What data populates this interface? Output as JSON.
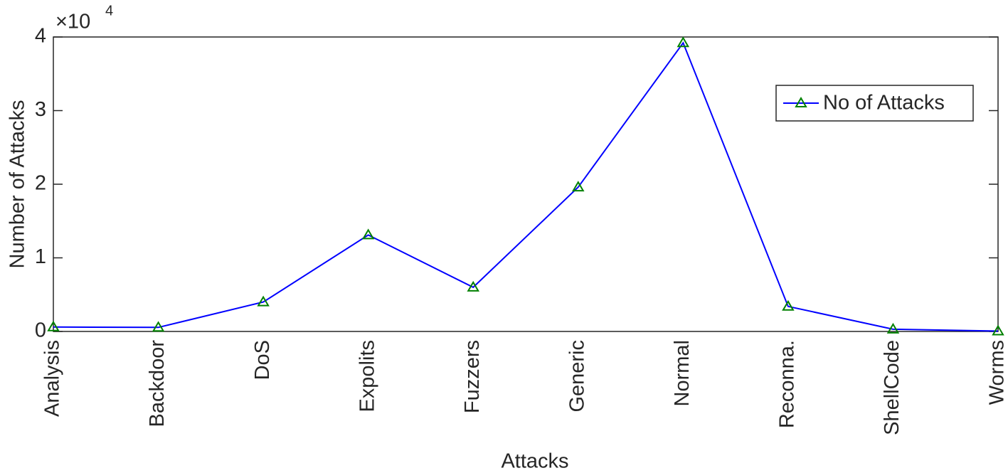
{
  "chart_data": {
    "type": "line",
    "xlabel": "Attacks",
    "ylabel": "Number of Attacks",
    "y_exponent": {
      "base": "×10",
      "power": "4"
    },
    "categories": [
      "Analysis",
      "Backdoor",
      "DoS",
      "Expolits",
      "Fuzzers",
      "Generic",
      "Normal",
      "Reconna.",
      "ShellCode",
      "Worms"
    ],
    "series": [
      {
        "name": "No of Attacks",
        "color": "#0000ff",
        "marker_color": "#008000",
        "values": [
          600,
          550,
          4000,
          13100,
          6000,
          19600,
          39200,
          3400,
          300,
          50
        ]
      }
    ],
    "ylim": [
      0,
      40000
    ],
    "yticks": [
      0,
      {
        "value": 10000,
        "label": "1"
      },
      {
        "value": 20000,
        "label": "2"
      },
      {
        "value": 30000,
        "label": "3"
      },
      {
        "value": 40000,
        "label": "4"
      }
    ],
    "grid": false,
    "legend": "northeast"
  }
}
